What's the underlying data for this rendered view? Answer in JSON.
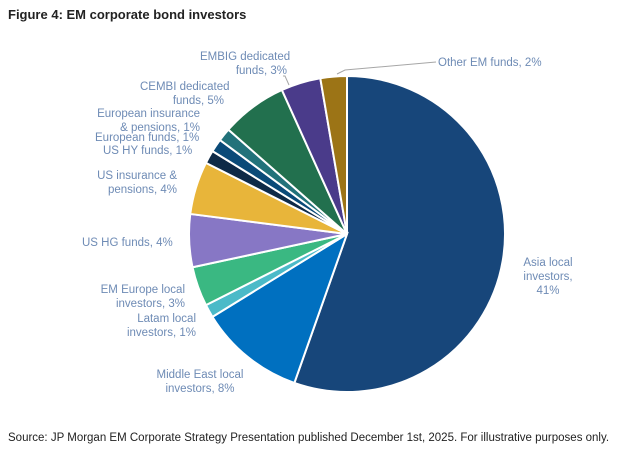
{
  "title": "Figure 4: EM corporate bond investors",
  "source": "Source: JP Morgan EM Corporate Strategy Presentation published December 1st, 2025. For illustrative purposes only.",
  "chart_data": {
    "type": "pie",
    "title": "Figure 4: EM corporate bond investors",
    "start": "top",
    "direction": "clockwise",
    "slices": [
      {
        "label": "Asia local investors",
        "value": 41,
        "text": "Asia local\ninvestors,\n41%",
        "color": "#17467a"
      },
      {
        "label": "Middle East local investors",
        "value": 8,
        "text": "Middle East local\ninvestors, 8%",
        "color": "#0070c0"
      },
      {
        "label": "Latam local investors",
        "value": 1,
        "text": "Latam local\ninvestors, 1%",
        "color": "#4bbac8"
      },
      {
        "label": "EM Europe local investors",
        "value": 3,
        "text": "EM Europe local\ninvestors, 3%",
        "color": "#3ab882"
      },
      {
        "label": "US HG funds",
        "value": 4,
        "text": "US HG funds, 4%",
        "color": "#8777c5"
      },
      {
        "label": "US insurance & pensions",
        "value": 4,
        "text": "US insurance &\npensions, 4%",
        "color": "#e8b53a"
      },
      {
        "label": "US HY funds",
        "value": 1,
        "text": "US HY funds, 1%",
        "color": "#0e2a47"
      },
      {
        "label": "European funds",
        "value": 1,
        "text": "European funds, 1%",
        "color": "#0a4a78"
      },
      {
        "label": "European insurance & pensions",
        "value": 1,
        "text": "European insurance\n& pensions, 1%",
        "color": "#22727a"
      },
      {
        "label": "CEMBI dedicated funds",
        "value": 5,
        "text": "CEMBI dedicated\nfunds, 5%",
        "color": "#22704e"
      },
      {
        "label": "EMBIG dedicated funds",
        "value": 3,
        "text": "EMBIG dedicated\nfunds, 3%",
        "color": "#4a3b8a"
      },
      {
        "label": "Other EM funds",
        "value": 2,
        "text": "Other EM funds, 2%",
        "color": "#9c7416"
      }
    ]
  }
}
